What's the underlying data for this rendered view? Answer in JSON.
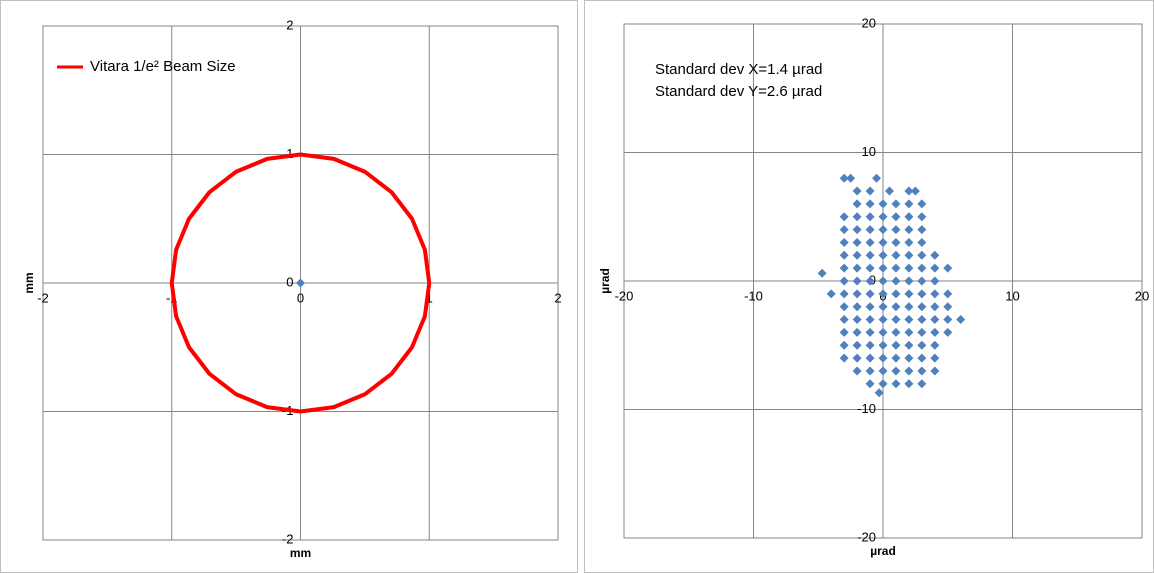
{
  "chart_data": [
    {
      "type": "scatter",
      "x_label": "mm",
      "y_label": "mm",
      "xlim": [
        -2,
        2
      ],
      "ylim": [
        -2,
        2
      ],
      "xticks": [
        -2,
        -1,
        0,
        1,
        2
      ],
      "yticks": [
        -2,
        -1,
        0,
        1,
        2
      ],
      "grid": true,
      "legend": "top-left",
      "series": [
        {
          "name": "Vitara 1/e² Beam Size",
          "color": "#ff0000",
          "mode": "line",
          "x": [
            1,
            0.966,
            0.866,
            0.707,
            0.5,
            0.259,
            0,
            -0.259,
            -0.5,
            -0.707,
            -0.866,
            -0.966,
            -1,
            -0.966,
            -0.866,
            -0.707,
            -0.5,
            -0.259,
            0,
            0.259,
            0.5,
            0.707,
            0.866,
            0.966,
            1
          ],
          "values": [
            0,
            0.259,
            0.5,
            0.707,
            0.866,
            0.966,
            1,
            0.966,
            0.866,
            0.707,
            0.5,
            0.259,
            0,
            -0.259,
            -0.5,
            -0.707,
            -0.866,
            -0.966,
            -1,
            -0.966,
            -0.866,
            -0.707,
            -0.5,
            -0.259,
            0
          ]
        },
        {
          "color": "#4f81bd",
          "mode": "marker",
          "x": [
            0
          ],
          "values": [
            0
          ]
        }
      ]
    },
    {
      "type": "scatter",
      "x_label": "µrad",
      "y_label": "µrad",
      "annotations": [
        "Standard dev X=1.4 µrad",
        "Standard dev Y=2.6 µrad"
      ],
      "xlim": [
        -20,
        20
      ],
      "ylim": [
        -20,
        20
      ],
      "xticks": [
        -20,
        -10,
        0,
        10,
        20
      ],
      "yticks": [
        -20,
        -10,
        0,
        10,
        20
      ],
      "grid": true,
      "series": [
        {
          "color": "#4f81bd",
          "mode": "marker",
          "x": [
            -3,
            -2.5,
            -0.5,
            -2,
            -1,
            0.5,
            2,
            2.5,
            -2,
            -1,
            0,
            1,
            2,
            3,
            -3,
            -2,
            -1,
            0,
            1,
            2,
            3,
            -3,
            -2,
            -1,
            0,
            1,
            2,
            3,
            -3,
            -2,
            -1,
            0,
            1,
            2,
            3,
            -3,
            -2,
            -1,
            0,
            1,
            2,
            3,
            4,
            -3,
            -2,
            -1,
            0,
            1,
            2,
            3,
            4,
            5,
            -3,
            -2,
            -1,
            0,
            1,
            2,
            3,
            4,
            -4,
            -3,
            -2,
            -1,
            0,
            1,
            2,
            3,
            4,
            5,
            -3,
            -2,
            -1,
            0,
            1,
            2,
            3,
            4,
            5,
            -3,
            -2,
            -1,
            0,
            1,
            2,
            3,
            4,
            5,
            6,
            -3,
            -2,
            -1,
            0,
            1,
            2,
            3,
            4,
            5,
            -3,
            -2,
            -1,
            0,
            1,
            2,
            3,
            4,
            -3,
            -2,
            -1,
            0,
            1,
            2,
            3,
            4,
            -2,
            -1,
            0,
            1,
            2,
            3,
            4,
            -1,
            0,
            1,
            2,
            3,
            -4.7,
            -0.3
          ],
          "values": [
            8,
            8,
            8,
            7,
            7,
            7,
            7,
            7,
            6,
            6,
            6,
            6,
            6,
            6,
            5,
            5,
            5,
            5,
            5,
            5,
            5,
            4,
            4,
            4,
            4,
            4,
            4,
            4,
            3,
            3,
            3,
            3,
            3,
            3,
            3,
            2,
            2,
            2,
            2,
            2,
            2,
            2,
            2,
            1,
            1,
            1,
            1,
            1,
            1,
            1,
            1,
            1,
            0,
            0,
            0,
            0,
            0,
            0,
            0,
            0,
            -1,
            -1,
            -1,
            -1,
            -1,
            -1,
            -1,
            -1,
            -1,
            -1,
            -2,
            -2,
            -2,
            -2,
            -2,
            -2,
            -2,
            -2,
            -2,
            -3,
            -3,
            -3,
            -3,
            -3,
            -3,
            -3,
            -3,
            -3,
            -3,
            -4,
            -4,
            -4,
            -4,
            -4,
            -4,
            -4,
            -4,
            -4,
            -5,
            -5,
            -5,
            -5,
            -5,
            -5,
            -5,
            -5,
            -6,
            -6,
            -6,
            -6,
            -6,
            -6,
            -6,
            -6,
            -7,
            -7,
            -7,
            -7,
            -7,
            -7,
            -7,
            -8,
            -8,
            -8,
            -8,
            -8,
            0.6,
            -8.7
          ]
        }
      ]
    }
  ]
}
